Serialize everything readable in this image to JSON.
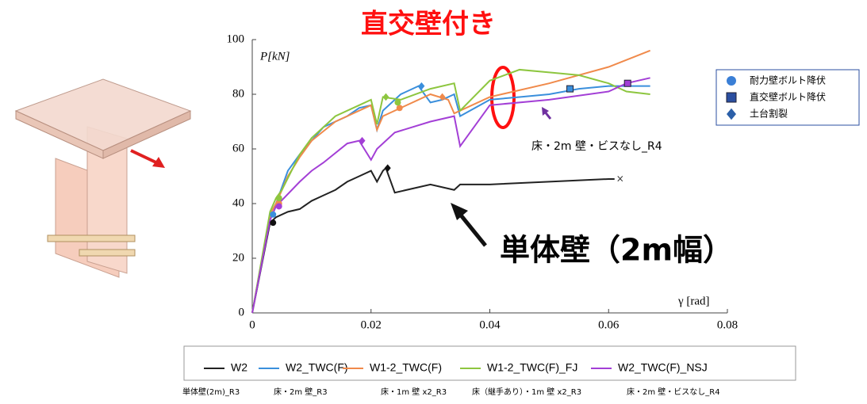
{
  "chart_data": {
    "type": "line",
    "title": "直交壁付き",
    "ylabel": "P[kN]",
    "xlabel": "γ [rad]",
    "xlim": [
      0,
      0.08
    ],
    "xticks": [
      0,
      0.02,
      0.04,
      0.06,
      0.08
    ],
    "ylim": [
      0,
      100
    ],
    "yticks": [
      0,
      20,
      40,
      60,
      80,
      100
    ],
    "annotations": [
      "床・2m 壁・ビスなし_R4",
      "単体壁（2m幅）"
    ],
    "series": [
      {
        "name": "W2",
        "note": "単体壁(2m)_R3",
        "color": "#222222",
        "x": [
          0,
          0.003,
          0.004,
          0.006,
          0.008,
          0.01,
          0.012,
          0.014,
          0.016,
          0.018,
          0.02,
          0.021,
          0.022,
          0.0225,
          0.024,
          0.03,
          0.034,
          0.035,
          0.04,
          0.05,
          0.06,
          0.061
        ],
        "values": [
          0,
          33,
          35,
          37,
          38,
          41,
          43,
          45,
          48,
          50,
          52,
          48,
          52,
          53,
          44,
          47,
          45,
          47,
          47,
          48,
          49,
          49
        ]
      },
      {
        "name": "W2_TWC(F)",
        "note": "床・2m 壁_R3",
        "color": "#3a8fdc",
        "x": [
          0,
          0.003,
          0.004,
          0.006,
          0.008,
          0.01,
          0.012,
          0.014,
          0.016,
          0.018,
          0.02,
          0.021,
          0.022,
          0.025,
          0.028,
          0.03,
          0.032,
          0.034,
          0.035,
          0.04,
          0.045,
          0.05,
          0.055,
          0.06,
          0.063,
          0.067
        ],
        "values": [
          0,
          36,
          40,
          52,
          58,
          63,
          68,
          70,
          72,
          75,
          76,
          67,
          74,
          80,
          83,
          77,
          78,
          80,
          72,
          78,
          79,
          80,
          82,
          83,
          83,
          83
        ]
      },
      {
        "name": "W1-2_TWC(F)",
        "note": "床・1m 壁 x2_R3",
        "color": "#f08a4b",
        "x": [
          0,
          0.003,
          0.004,
          0.006,
          0.008,
          0.01,
          0.014,
          0.016,
          0.018,
          0.02,
          0.021,
          0.022,
          0.025,
          0.03,
          0.033,
          0.034,
          0.04,
          0.05,
          0.06,
          0.067
        ],
        "values": [
          0,
          36,
          40,
          50,
          57,
          63,
          70,
          72,
          74,
          76,
          67,
          72,
          75,
          80,
          78,
          73,
          79,
          84,
          90,
          96
        ]
      },
      {
        "name": "W1-2_TWC(F)_FJ",
        "note": "床（継手あり）・1m 壁 x2_R3",
        "color": "#8dc63f",
        "x": [
          0,
          0.003,
          0.004,
          0.005,
          0.008,
          0.01,
          0.014,
          0.018,
          0.02,
          0.021,
          0.022,
          0.025,
          0.03,
          0.034,
          0.035,
          0.04,
          0.045,
          0.05,
          0.055,
          0.06,
          0.063,
          0.067
        ],
        "values": [
          0,
          37,
          42,
          45,
          58,
          64,
          72,
          76,
          78,
          69,
          79,
          78,
          82,
          84,
          74,
          85,
          89,
          88,
          87,
          84,
          81,
          80
        ]
      },
      {
        "name": "W2_TWC(F)_NSJ",
        "note": "床・2m 壁・ビスなし_R4",
        "color": "#a33fd6",
        "x": [
          0,
          0.003,
          0.004,
          0.008,
          0.01,
          0.012,
          0.016,
          0.018,
          0.02,
          0.021,
          0.024,
          0.03,
          0.034,
          0.035,
          0.04,
          0.05,
          0.06,
          0.063,
          0.067
        ],
        "values": [
          0,
          34,
          39,
          48,
          52,
          55,
          62,
          63,
          56,
          60,
          66,
          70,
          72,
          61,
          76,
          78,
          81,
          84,
          86
        ]
      }
    ],
    "marker_legend": [
      {
        "label": "耐力壁ボルト降伏",
        "shape": "circle",
        "color": "#3a7fd6"
      },
      {
        "label": "直交壁ボルト降伏",
        "shape": "square",
        "color": "#2b4fa0"
      },
      {
        "label": "土台割裂",
        "shape": "diamond",
        "color": "#2b5fa8"
      }
    ],
    "markers": [
      {
        "shape": "circle",
        "color": "#111111",
        "x": 0.0035,
        "y": 33
      },
      {
        "shape": "circle",
        "color": "#3a8fdc",
        "x": 0.0035,
        "y": 36
      },
      {
        "shape": "circle",
        "color": "#f08a4b",
        "x": 0.0045,
        "y": 40
      },
      {
        "shape": "circle",
        "color": "#8dc63f",
        "x": 0.0045,
        "y": 42
      },
      {
        "shape": "circle",
        "color": "#a33fd6",
        "x": 0.0045,
        "y": 39
      },
      {
        "shape": "circle",
        "color": "#f08a4b",
        "x": 0.0248,
        "y": 75
      },
      {
        "shape": "circle",
        "color": "#8dc63f",
        "x": 0.0245,
        "y": 77
      },
      {
        "shape": "diamond",
        "color": "#111111",
        "x": 0.0228,
        "y": 53
      },
      {
        "shape": "diamond",
        "color": "#a33fd6",
        "x": 0.0185,
        "y": 63
      },
      {
        "shape": "diamond",
        "color": "#8dc63f",
        "x": 0.0225,
        "y": 79
      },
      {
        "shape": "diamond",
        "color": "#3a8fdc",
        "x": 0.0285,
        "y": 83
      },
      {
        "shape": "diamond",
        "color": "#f08a4b",
        "x": 0.032,
        "y": 79
      },
      {
        "shape": "square",
        "color": "#3a8fdc",
        "x": 0.0535,
        "y": 82
      },
      {
        "shape": "square",
        "color": "#a33fd6",
        "x": 0.0632,
        "y": 84
      }
    ]
  }
}
